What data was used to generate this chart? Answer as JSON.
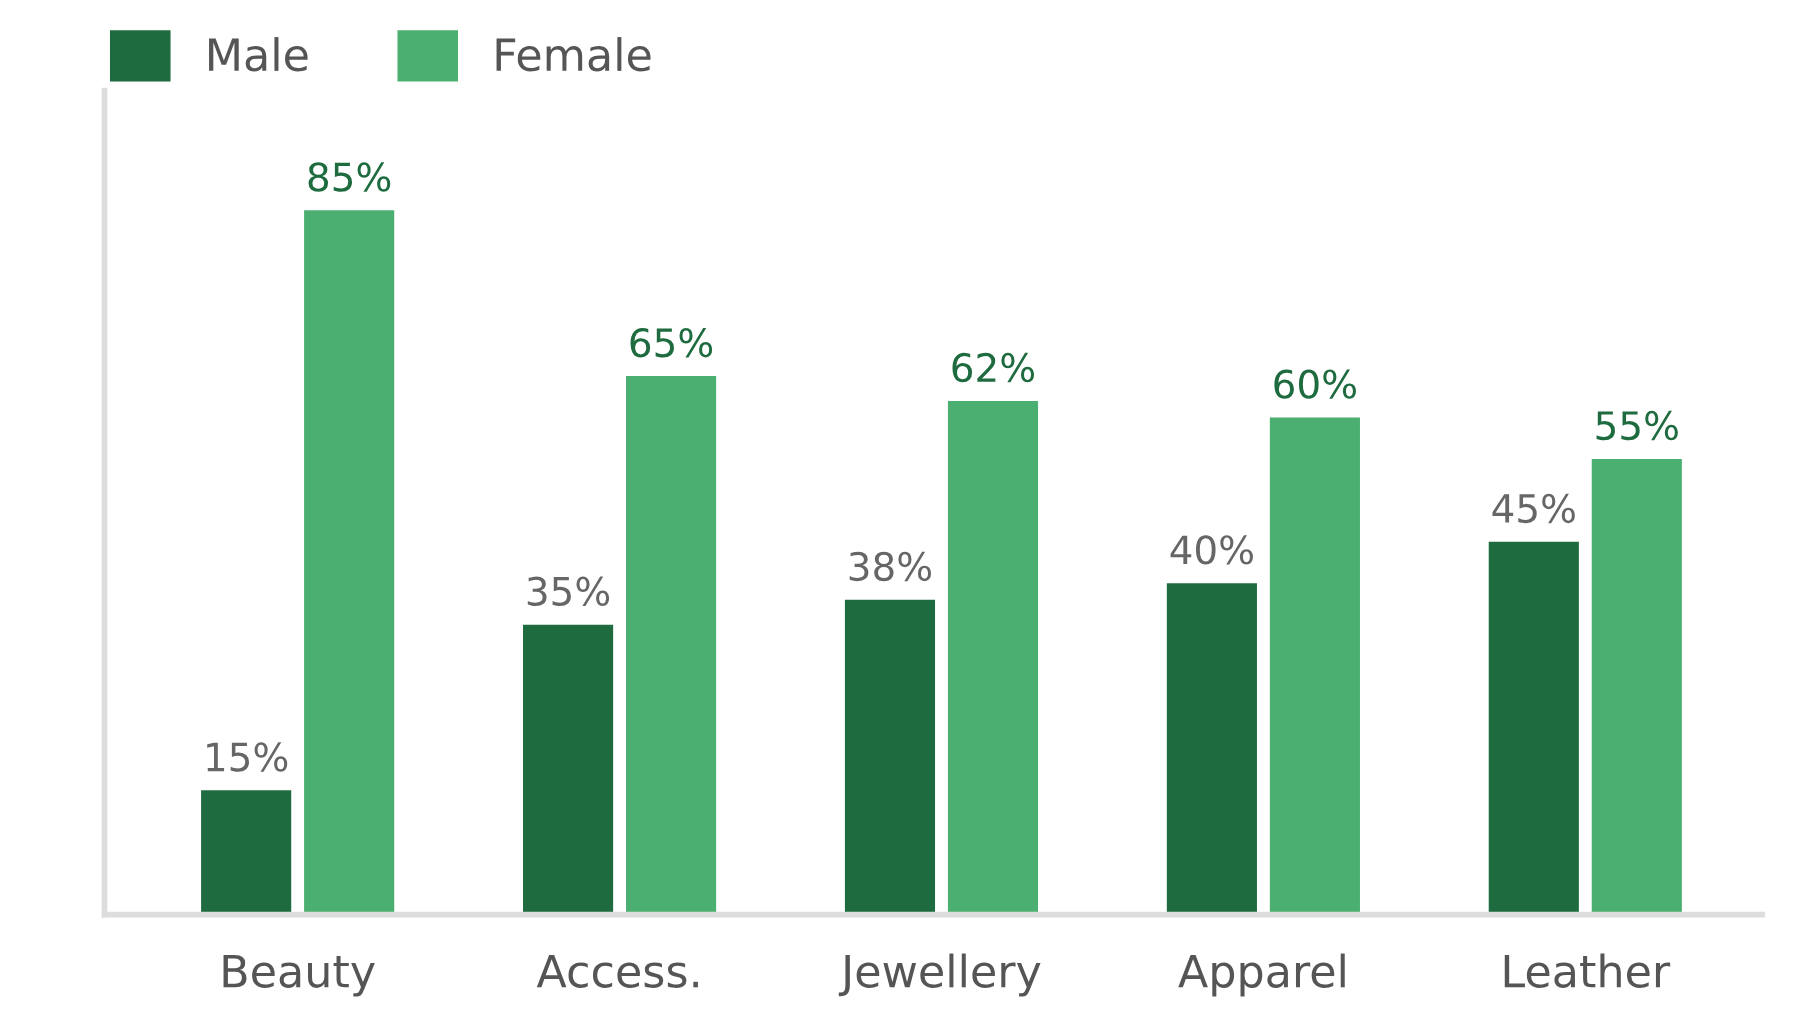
{
  "chart_data": {
    "type": "bar",
    "categories": [
      "Beauty",
      "Access.",
      "Jewellery",
      "Apparel",
      "Leather"
    ],
    "series": [
      {
        "name": "Male",
        "color": "#1e6b3f",
        "values": [
          15,
          35,
          38,
          40,
          45
        ],
        "value_labels": [
          "15%",
          "35%",
          "38%",
          "40%",
          "45%"
        ]
      },
      {
        "name": "Female",
        "color": "#4caf72",
        "values": [
          85,
          65,
          62,
          60,
          55
        ],
        "value_labels": [
          "85%",
          "65%",
          "62%",
          "60%",
          "55%"
        ]
      }
    ],
    "legend": "top left",
    "grid": false
  }
}
